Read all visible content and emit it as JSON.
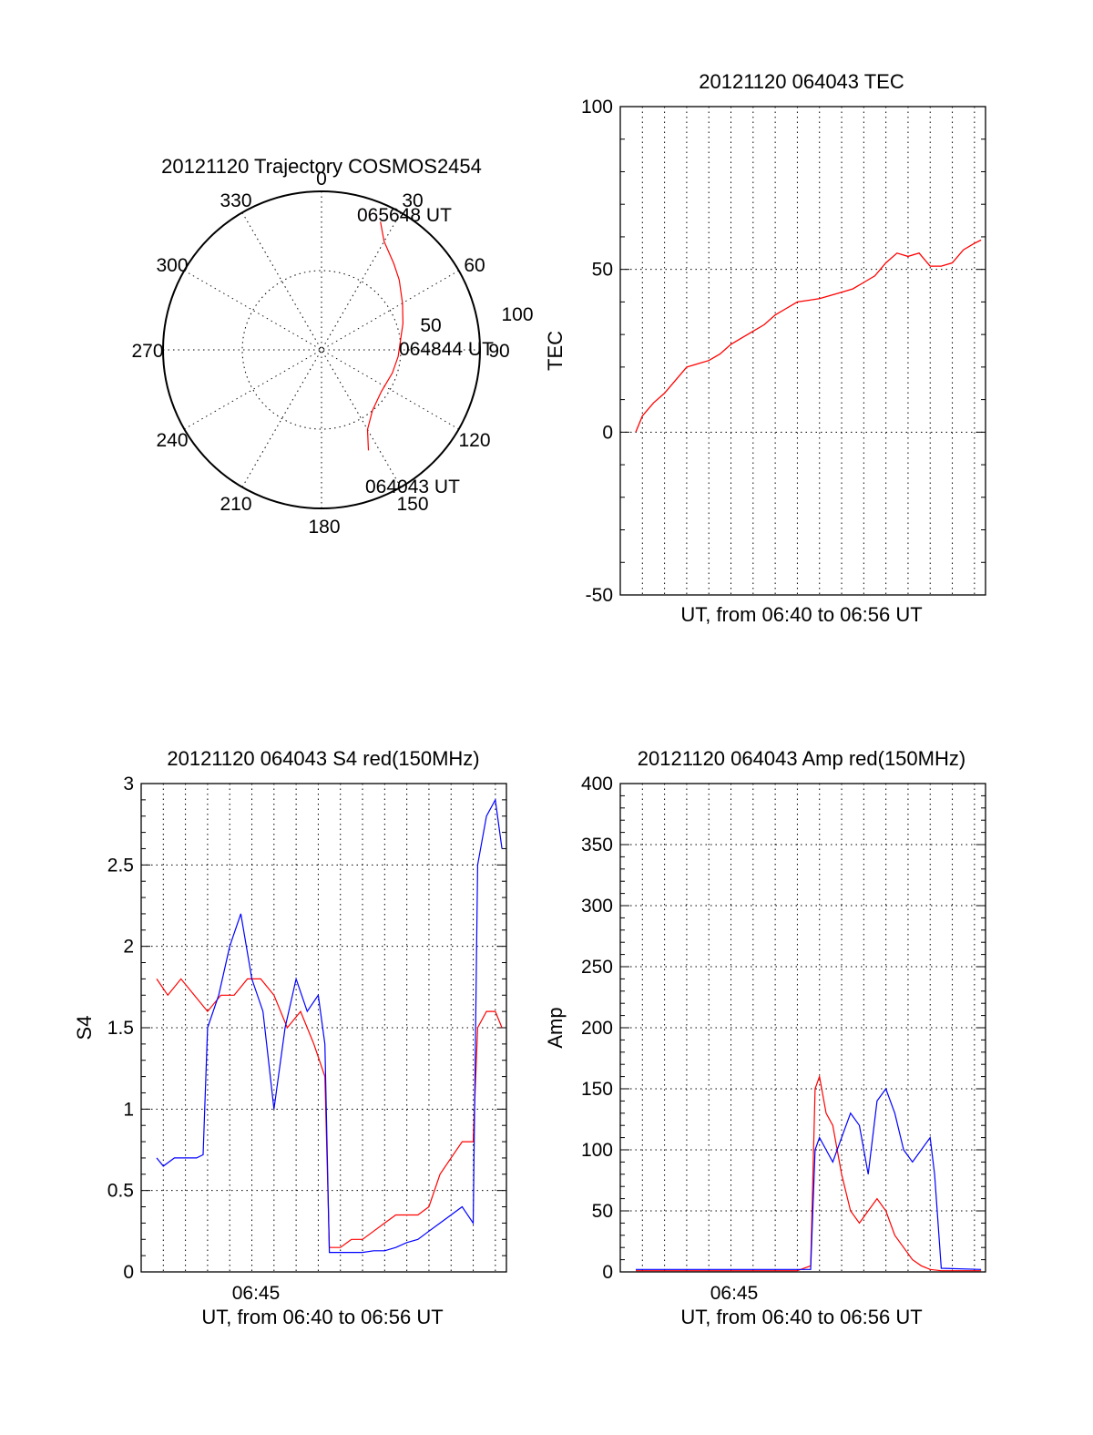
{
  "colors": {
    "red": "#ff0000",
    "blue": "#0000ff",
    "axis": "#000000"
  },
  "chart_data": [
    {
      "id": "polar",
      "type": "polar",
      "title": "20121120 Trajectory COSMOS2454",
      "azimuth_labels": [
        "0",
        "30",
        "60",
        "90",
        "120",
        "150",
        "180",
        "210",
        "240",
        "270",
        "300",
        "330"
      ],
      "radial_labels": [
        "50",
        "100"
      ],
      "rlim": [
        0,
        100
      ],
      "trajectory": {
        "color": "red",
        "points_az_r": [
          [
            155.0,
            70
          ],
          [
            150.0,
            58
          ],
          [
            140.0,
            50
          ],
          [
            125.0,
            46
          ],
          [
            108.0,
            47
          ],
          [
            95.0,
            48.5
          ],
          [
            84.0,
            50
          ],
          [
            72.0,
            54
          ],
          [
            60.0,
            59
          ],
          [
            48.0,
            66
          ],
          [
            40.0,
            71
          ],
          [
            30.0,
            79
          ],
          [
            24.7,
            89
          ]
        ]
      },
      "annotations": [
        {
          "text": "065648 UT",
          "at": "end"
        },
        {
          "text": "064844 UT",
          "at": "middle"
        },
        {
          "text": "064043 UT",
          "at": "start"
        }
      ]
    },
    {
      "id": "tec",
      "type": "line",
      "title": "20121120 064043 TEC",
      "xlabel": "UT, from 06:40 to 06:56 UT",
      "ylabel": "TEC",
      "xlim": [
        0,
        16.5
      ],
      "ylim": [
        -50,
        100
      ],
      "yticks": [
        "-50",
        "0",
        "50",
        "100"
      ],
      "series": [
        {
          "name": "TEC",
          "color": "red",
          "x": [
            0.7,
            1.0,
            1.5,
            2.0,
            2.5,
            3.0,
            3.5,
            4.0,
            4.5,
            5.0,
            5.5,
            6.0,
            6.5,
            7.0,
            7.5,
            8.0,
            8.5,
            9.0,
            9.5,
            10.0,
            10.5,
            11.0,
            11.5,
            12.0,
            12.5,
            13.0,
            13.5,
            14.0,
            14.5,
            15.0,
            15.5,
            16.0,
            16.3
          ],
          "values": [
            0,
            5,
            9,
            12,
            16,
            20,
            21,
            22,
            24,
            27,
            29,
            31,
            33,
            36,
            38,
            40,
            40.5,
            41,
            42,
            43,
            44,
            46,
            48,
            52,
            55,
            54,
            55,
            51,
            51,
            52,
            56,
            58,
            59
          ]
        }
      ]
    },
    {
      "id": "s4",
      "type": "line",
      "title": "20121120 064043 S4 red(150MHz)",
      "xlabel": "UT, from 06:40 to 06:56 UT",
      "ylabel": "S4",
      "xlim": [
        0,
        16.5
      ],
      "ylim": [
        0,
        3
      ],
      "yticks": [
        "0",
        "0.5",
        "1",
        "1.5",
        "2",
        "2.5",
        "3"
      ],
      "xtick_label": "06:45",
      "series": [
        {
          "name": "red",
          "color": "red",
          "x": [
            0.7,
            1.2,
            1.8,
            2.4,
            3.0,
            3.6,
            4.2,
            4.8,
            5.4,
            6.0,
            6.6,
            7.2,
            7.8,
            8.3,
            8.5,
            9.0,
            9.5,
            10.0,
            10.5,
            11.0,
            11.5,
            12.0,
            12.5,
            13.0,
            13.5,
            14.0,
            14.5,
            15.0,
            15.2,
            15.6,
            16.0,
            16.3
          ],
          "values": [
            1.8,
            1.7,
            1.8,
            1.7,
            1.6,
            1.7,
            1.7,
            1.8,
            1.8,
            1.7,
            1.5,
            1.6,
            1.4,
            1.2,
            0.15,
            0.15,
            0.2,
            0.2,
            0.25,
            0.3,
            0.35,
            0.35,
            0.35,
            0.4,
            0.6,
            0.7,
            0.8,
            0.8,
            1.5,
            1.6,
            1.6,
            1.5
          ]
        },
        {
          "name": "blue",
          "color": "blue",
          "x": [
            0.7,
            1.0,
            1.5,
            2.0,
            2.5,
            2.8,
            3.0,
            3.5,
            4.0,
            4.5,
            5.0,
            5.5,
            6.0,
            6.5,
            7.0,
            7.5,
            8.0,
            8.3,
            8.5,
            9.0,
            9.5,
            10.0,
            10.5,
            11.0,
            11.5,
            12.0,
            12.5,
            13.0,
            13.5,
            14.0,
            14.5,
            15.0,
            15.2,
            15.6,
            16.0,
            16.3
          ],
          "values": [
            0.7,
            0.65,
            0.7,
            0.7,
            0.7,
            0.72,
            1.5,
            1.7,
            2.0,
            2.2,
            1.8,
            1.6,
            1.0,
            1.5,
            1.8,
            1.6,
            1.7,
            1.4,
            0.12,
            0.12,
            0.12,
            0.12,
            0.13,
            0.13,
            0.15,
            0.18,
            0.2,
            0.25,
            0.3,
            0.35,
            0.4,
            0.3,
            2.5,
            2.8,
            2.9,
            2.6
          ]
        }
      ]
    },
    {
      "id": "amp",
      "type": "line",
      "title": "20121120 064043 Amp red(150MHz)",
      "xlabel": "UT, from 06:40 to 06:56 UT",
      "ylabel": "Amp",
      "xlim": [
        0,
        16.5
      ],
      "ylim": [
        0,
        400
      ],
      "yticks": [
        "0",
        "50",
        "100",
        "150",
        "200",
        "250",
        "300",
        "350",
        "400"
      ],
      "xtick_label": "06:45",
      "series": [
        {
          "name": "red",
          "color": "red",
          "x": [
            0.7,
            8.0,
            8.6,
            8.8,
            9.0,
            9.3,
            9.6,
            10.0,
            10.4,
            10.8,
            11.2,
            11.6,
            12.0,
            12.4,
            12.8,
            13.2,
            13.6,
            14.0,
            14.5,
            16.3
          ],
          "values": [
            1,
            1,
            5,
            150,
            160,
            130,
            120,
            80,
            50,
            40,
            50,
            60,
            50,
            30,
            20,
            10,
            5,
            2,
            1,
            1
          ]
        },
        {
          "name": "blue",
          "color": "blue",
          "x": [
            0.7,
            8.0,
            8.6,
            8.8,
            9.0,
            9.3,
            9.6,
            10.0,
            10.4,
            10.8,
            11.2,
            11.6,
            12.0,
            12.4,
            12.8,
            13.2,
            13.6,
            14.0,
            14.2,
            14.5,
            16.3
          ],
          "values": [
            2,
            2,
            2,
            100,
            110,
            100,
            90,
            110,
            130,
            120,
            80,
            140,
            150,
            130,
            100,
            90,
            100,
            110,
            80,
            3,
            2
          ]
        }
      ]
    }
  ]
}
